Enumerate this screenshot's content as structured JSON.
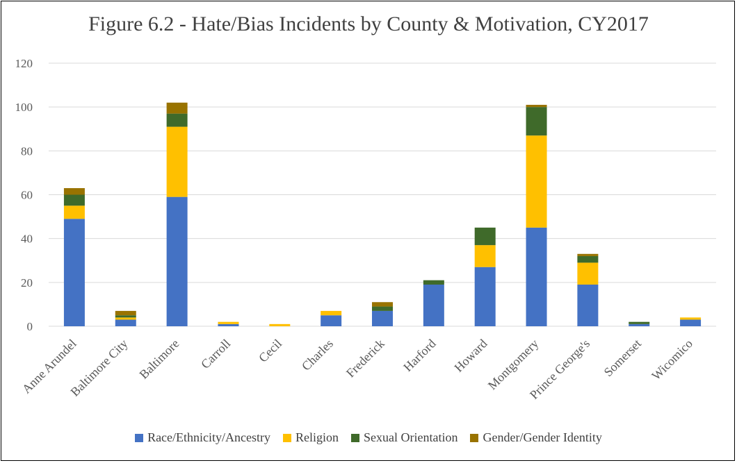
{
  "chart_data": {
    "type": "bar",
    "stacked": true,
    "title": "Figure 6.2 - Hate/Bias Incidents by County & Motivation, CY2017",
    "xlabel": "",
    "ylabel": "",
    "ylim": [
      0,
      120
    ],
    "yticks": [
      "0",
      "20",
      "40",
      "60",
      "80",
      "100",
      "120"
    ],
    "grid": true,
    "legend_position": "bottom",
    "categories": [
      "Anne Arundel",
      "Baltimore City",
      "Baltimore",
      "Carroll",
      "Cecil",
      "Charles",
      "Frederick",
      "Harford",
      "Howard",
      "Montgomery",
      "Prince George's",
      "Somerset",
      "Wicomico"
    ],
    "series": [
      {
        "name": "Race/Ethnicity/Ancestry",
        "color": "#4472C4",
        "values": [
          49,
          3,
          59,
          1,
          0,
          5,
          7,
          19,
          27,
          45,
          19,
          1,
          3
        ]
      },
      {
        "name": "Religion",
        "color": "#FFC000",
        "values": [
          6,
          1,
          32,
          1,
          1,
          2,
          0,
          0,
          10,
          42,
          10,
          0,
          1
        ]
      },
      {
        "name": "Sexual Orientation",
        "color": "#3F6A2A",
        "values": [
          5,
          1,
          6,
          0,
          0,
          0,
          2,
          2,
          8,
          13,
          3,
          1,
          0
        ]
      },
      {
        "name": "Gender/Gender Identity",
        "color": "#997300",
        "values": [
          3,
          2,
          5,
          0,
          0,
          0,
          2,
          0,
          0,
          1,
          1,
          0,
          0
        ]
      }
    ]
  }
}
